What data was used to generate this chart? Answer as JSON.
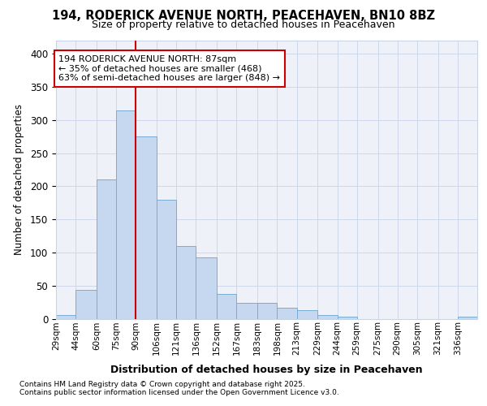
{
  "title_line1": "194, RODERICK AVENUE NORTH, PEACEHAVEN, BN10 8BZ",
  "title_line2": "Size of property relative to detached houses in Peacehaven",
  "xlabel": "Distribution of detached houses by size in Peacehaven",
  "ylabel": "Number of detached properties",
  "bin_labels": [
    "29sqm",
    "44sqm",
    "60sqm",
    "75sqm",
    "90sqm",
    "106sqm",
    "121sqm",
    "136sqm",
    "152sqm",
    "167sqm",
    "183sqm",
    "198sqm",
    "213sqm",
    "229sqm",
    "244sqm",
    "259sqm",
    "275sqm",
    "290sqm",
    "305sqm",
    "321sqm",
    "336sqm"
  ],
  "bin_edges": [
    29,
    44,
    60,
    75,
    90,
    106,
    121,
    136,
    152,
    167,
    183,
    198,
    213,
    229,
    244,
    259,
    275,
    290,
    305,
    321,
    336,
    351
  ],
  "bar_heights": [
    5,
    43,
    210,
    315,
    275,
    180,
    110,
    93,
    38,
    24,
    24,
    16,
    13,
    5,
    3,
    0,
    0,
    0,
    0,
    0,
    3
  ],
  "bar_color": "#c5d8f0",
  "bar_edge_color": "#7aadd4",
  "property_size": 87,
  "vline_x": 90,
  "vline_color": "#cc0000",
  "annotation_line1": "194 RODERICK AVENUE NORTH: 87sqm",
  "annotation_line2": "← 35% of detached houses are smaller (468)",
  "annotation_line3": "63% of semi-detached houses are larger (848) →",
  "annotation_box_color": "#cc0000",
  "annotation_box_bg": "#ffffff",
  "ylim": [
    0,
    420
  ],
  "yticks": [
    0,
    50,
    100,
    150,
    200,
    250,
    300,
    350,
    400
  ],
  "footnote1": "Contains HM Land Registry data © Crown copyright and database right 2025.",
  "footnote2": "Contains public sector information licensed under the Open Government Licence v3.0.",
  "bg_color": "#eef2f8",
  "grid_color": "#c8d4e8"
}
